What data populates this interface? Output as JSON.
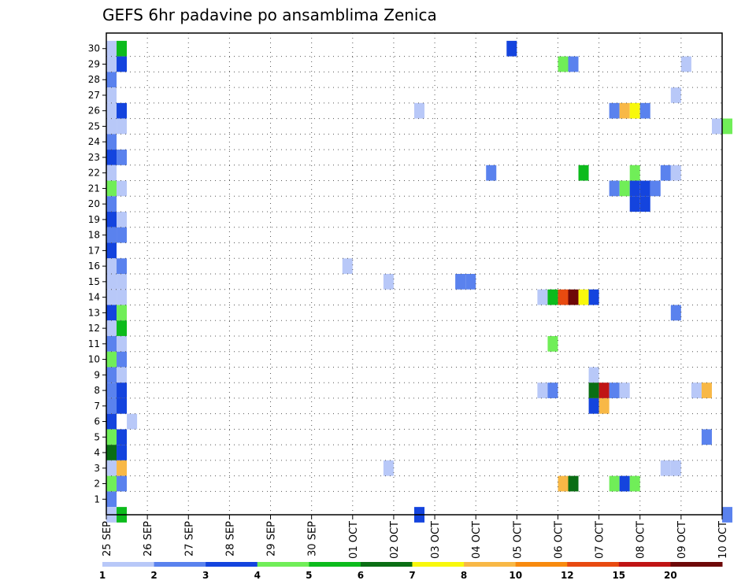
{
  "chart_data": {
    "type": "heatmap",
    "title": "GEFS 6hr padavine po ansamblima Zenica",
    "xlabel": "",
    "ylabel": "",
    "x_ticks": [
      "25 SEP",
      "26 SEP",
      "27 SEP",
      "28 SEP",
      "29 SEP",
      "30 SEP",
      "01 OCT",
      "02 OCT",
      "03 OCT",
      "04 OCT",
      "05 OCT",
      "06 OCT",
      "07 OCT",
      "08 OCT",
      "09 OCT",
      "10 OCT"
    ],
    "y_ticks": [
      "1",
      "2",
      "3",
      "4",
      "5",
      "6",
      "7",
      "8",
      "9",
      "10",
      "11",
      "12",
      "13",
      "14",
      "15",
      "16",
      "17",
      "18",
      "19",
      "20",
      "21",
      "22",
      "23",
      "24",
      "25",
      "26",
      "27",
      "28",
      "29",
      "30"
    ],
    "x_unit": "6-hour steps from 25 SEP 00Z",
    "grid": true,
    "legend": {
      "placement": "bottom",
      "labels": [
        "1",
        "2",
        "3",
        "4",
        "5",
        "6",
        "7",
        "8",
        "10",
        "12",
        "15",
        "20"
      ],
      "colors": [
        "#b8c8f8",
        "#5a82ee",
        "#1444de",
        "#70ee58",
        "#0cbb1c",
        "#0a6e14",
        "#f8f80c",
        "#f8b846",
        "#f88a0e",
        "#e84a10",
        "#c01414",
        "#6e0808"
      ]
    },
    "cells": [
      {
        "member": 30,
        "step": 0,
        "level": 1
      },
      {
        "member": 30,
        "step": 1,
        "level": 5
      },
      {
        "member": 29,
        "step": 0,
        "level": 1
      },
      {
        "member": 29,
        "step": 1,
        "level": 3
      },
      {
        "member": 28,
        "step": 0,
        "level": 2
      },
      {
        "member": 27,
        "step": 0,
        "level": 1
      },
      {
        "member": 26,
        "step": 0,
        "level": 1
      },
      {
        "member": 26,
        "step": 1,
        "level": 3
      },
      {
        "member": 25,
        "step": 0,
        "level": 1
      },
      {
        "member": 25,
        "step": 1,
        "level": 1
      },
      {
        "member": 24,
        "step": 0,
        "level": 2
      },
      {
        "member": 23,
        "step": 0,
        "level": 3
      },
      {
        "member": 23,
        "step": 1,
        "level": 2
      },
      {
        "member": 22,
        "step": 0,
        "level": 1
      },
      {
        "member": 21,
        "step": 0,
        "level": 4
      },
      {
        "member": 21,
        "step": 1,
        "level": 1
      },
      {
        "member": 20,
        "step": 0,
        "level": 2
      },
      {
        "member": 19,
        "step": 0,
        "level": 3
      },
      {
        "member": 19,
        "step": 1,
        "level": 1
      },
      {
        "member": 18,
        "step": 0,
        "level": 2
      },
      {
        "member": 18,
        "step": 1,
        "level": 2
      },
      {
        "member": 17,
        "step": 0,
        "level": 3
      },
      {
        "member": 16,
        "step": 0,
        "level": 1
      },
      {
        "member": 16,
        "step": 1,
        "level": 2
      },
      {
        "member": 15,
        "step": 0,
        "level": 1
      },
      {
        "member": 15,
        "step": 1,
        "level": 1
      },
      {
        "member": 14,
        "step": 0,
        "level": 1
      },
      {
        "member": 14,
        "step": 1,
        "level": 1
      },
      {
        "member": 13,
        "step": 0,
        "level": 3
      },
      {
        "member": 13,
        "step": 1,
        "level": 4
      },
      {
        "member": 12,
        "step": 0,
        "level": 1
      },
      {
        "member": 12,
        "step": 1,
        "level": 5
      },
      {
        "member": 11,
        "step": 0,
        "level": 2
      },
      {
        "member": 11,
        "step": 1,
        "level": 1
      },
      {
        "member": 10,
        "step": 0,
        "level": 4
      },
      {
        "member": 10,
        "step": 1,
        "level": 2
      },
      {
        "member": 9,
        "step": 0,
        "level": 2
      },
      {
        "member": 9,
        "step": 1,
        "level": 1
      },
      {
        "member": 8,
        "step": 0,
        "level": 2
      },
      {
        "member": 8,
        "step": 1,
        "level": 3
      },
      {
        "member": 7,
        "step": 0,
        "level": 2
      },
      {
        "member": 7,
        "step": 1,
        "level": 3
      },
      {
        "member": 6,
        "step": 0,
        "level": 3
      },
      {
        "member": 6,
        "step": 2,
        "level": 1
      },
      {
        "member": 5,
        "step": 0,
        "level": 4
      },
      {
        "member": 5,
        "step": 1,
        "level": 3
      },
      {
        "member": 4,
        "step": 0,
        "level": 6
      },
      {
        "member": 4,
        "step": 1,
        "level": 3
      },
      {
        "member": 3,
        "step": 0,
        "level": 1
      },
      {
        "member": 3,
        "step": 1,
        "level": 8
      },
      {
        "member": 2,
        "step": 0,
        "level": 4
      },
      {
        "member": 2,
        "step": 1,
        "level": 2
      },
      {
        "member": 1,
        "step": 0,
        "level": 2
      },
      {
        "member": 0,
        "step": 0,
        "level": 1
      },
      {
        "member": 0,
        "step": 1,
        "level": 5
      },
      {
        "member": 30,
        "step": 39,
        "level": 3
      },
      {
        "member": 29,
        "step": 44,
        "level": 4
      },
      {
        "member": 29,
        "step": 45,
        "level": 2
      },
      {
        "member": 29,
        "step": 56,
        "level": 1
      },
      {
        "member": 27,
        "step": 55,
        "level": 1
      },
      {
        "member": 26,
        "step": 30,
        "level": 1
      },
      {
        "member": 26,
        "step": 49,
        "level": 2
      },
      {
        "member": 26,
        "step": 50,
        "level": 8
      },
      {
        "member": 26,
        "step": 51,
        "level": 7
      },
      {
        "member": 26,
        "step": 52,
        "level": 2
      },
      {
        "member": 25,
        "step": 59,
        "level": 1
      },
      {
        "member": 25,
        "step": 60,
        "level": 4
      },
      {
        "member": 22,
        "step": 37,
        "level": 2
      },
      {
        "member": 22,
        "step": 46,
        "level": 5
      },
      {
        "member": 22,
        "step": 51,
        "level": 4
      },
      {
        "member": 22,
        "step": 54,
        "level": 2
      },
      {
        "member": 22,
        "step": 55,
        "level": 1
      },
      {
        "member": 21,
        "step": 49,
        "level": 2
      },
      {
        "member": 21,
        "step": 50,
        "level": 4
      },
      {
        "member": 21,
        "step": 51,
        "level": 3
      },
      {
        "member": 21,
        "step": 52,
        "level": 3
      },
      {
        "member": 21,
        "step": 53,
        "level": 2
      },
      {
        "member": 20,
        "step": 51,
        "level": 3
      },
      {
        "member": 20,
        "step": 52,
        "level": 3
      },
      {
        "member": 16,
        "step": 23,
        "level": 1
      },
      {
        "member": 15,
        "step": 27,
        "level": 1
      },
      {
        "member": 15,
        "step": 34,
        "level": 2
      },
      {
        "member": 15,
        "step": 35,
        "level": 2
      },
      {
        "member": 14,
        "step": 42,
        "level": 1
      },
      {
        "member": 14,
        "step": 43,
        "level": 5
      },
      {
        "member": 14,
        "step": 44,
        "level": 10
      },
      {
        "member": 14,
        "step": 45,
        "level": 12
      },
      {
        "member": 14,
        "step": 46,
        "level": 7
      },
      {
        "member": 14,
        "step": 47,
        "level": 3
      },
      {
        "member": 13,
        "step": 55,
        "level": 2
      },
      {
        "member": 11,
        "step": 43,
        "level": 4
      },
      {
        "member": 9,
        "step": 47,
        "level": 1
      },
      {
        "member": 8,
        "step": 42,
        "level": 1
      },
      {
        "member": 8,
        "step": 43,
        "level": 2
      },
      {
        "member": 8,
        "step": 47,
        "level": 6
      },
      {
        "member": 8,
        "step": 48,
        "level": 11
      },
      {
        "member": 8,
        "step": 49,
        "level": 2
      },
      {
        "member": 8,
        "step": 50,
        "level": 1
      },
      {
        "member": 8,
        "step": 57,
        "level": 1
      },
      {
        "member": 8,
        "step": 58,
        "level": 8
      },
      {
        "member": 7,
        "step": 47,
        "level": 3
      },
      {
        "member": 7,
        "step": 48,
        "level": 8
      },
      {
        "member": 5,
        "step": 58,
        "level": 2
      },
      {
        "member": 3,
        "step": 27,
        "level": 1
      },
      {
        "member": 3,
        "step": 54,
        "level": 1
      },
      {
        "member": 3,
        "step": 55,
        "level": 1
      },
      {
        "member": 2,
        "step": 44,
        "level": 8
      },
      {
        "member": 2,
        "step": 45,
        "level": 6
      },
      {
        "member": 2,
        "step": 49,
        "level": 4
      },
      {
        "member": 2,
        "step": 50,
        "level": 3
      },
      {
        "member": 2,
        "step": 51,
        "level": 4
      },
      {
        "member": 0,
        "step": 30,
        "level": 3
      },
      {
        "member": 0,
        "step": 60,
        "level": 2
      }
    ]
  }
}
